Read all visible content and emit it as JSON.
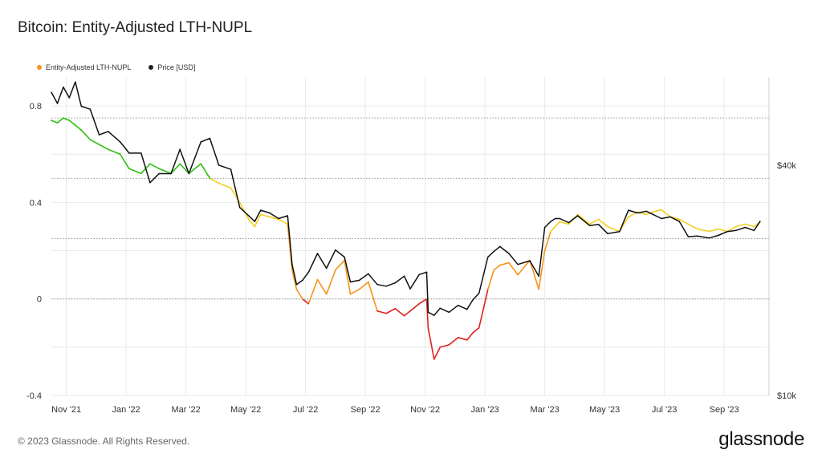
{
  "title": "Bitcoin: Entity-Adjusted LTH-NUPL",
  "footer": "© 2023 Glassnode. All Rights Reserved.",
  "brand": "glassnode",
  "legend": [
    {
      "label": "Entity-Adjusted LTH-NUPL",
      "color": "#f7931a"
    },
    {
      "label": "Price [USD]",
      "color": "#222222"
    }
  ],
  "colors": {
    "price": "#111111",
    "zone_green": "#2ec00f",
    "zone_yellow": "#f2d022",
    "zone_orange": "#f7931a",
    "zone_red": "#e02020",
    "grid": "#e9e9e9",
    "threshold": "#9a9a9a"
  },
  "chart_data": {
    "type": "line",
    "title": "Bitcoin: Entity-Adjusted LTH-NUPL",
    "x_ticks": [
      "Nov '21",
      "Jan '22",
      "Mar '22",
      "May '22",
      "Jul '22",
      "Sep '22",
      "Nov '22",
      "Jan '23",
      "Mar '23",
      "May '23",
      "Jul '23",
      "Sep '23"
    ],
    "x_tick_positions": [
      0.5,
      2.5,
      4.5,
      6.5,
      8.5,
      10.5,
      12.5,
      14.5,
      16.5,
      18.5,
      20.5,
      22.5
    ],
    "x_range": [
      0,
      24
    ],
    "y_left": {
      "ticks": [
        0.8,
        0.4,
        0,
        -0.4
      ],
      "tick_labels": [
        "0.8",
        "0.4",
        "0",
        "-0.4"
      ],
      "range": [
        -0.4,
        0.92
      ]
    },
    "y_right": {
      "ticks": [
        40000,
        10000
      ],
      "tick_labels": [
        "$40k",
        "$10k"
      ],
      "range": [
        10000,
        68000
      ],
      "scale": "log"
    },
    "threshold_lines": [
      0.75,
      0.5,
      0.25,
      0
    ],
    "zone_thresholds": {
      "green_above": 0.5,
      "yellow_above": 0.25,
      "orange_above": 0
    },
    "series": [
      {
        "name": "Entity-Adjusted LTH-NUPL",
        "axis": "left",
        "coloring": "zone",
        "x": [
          0,
          0.2,
          0.4,
          0.6,
          0.8,
          1,
          1.3,
          1.6,
          1.9,
          2.3,
          2.6,
          3,
          3.3,
          3.6,
          4,
          4.3,
          4.6,
          5,
          5.3,
          5.6,
          6,
          6.3,
          6.6,
          6.8,
          7,
          7.3,
          7.6,
          7.9,
          8.05,
          8.2,
          8.4,
          8.6,
          8.9,
          9.2,
          9.5,
          9.8,
          10,
          10.3,
          10.6,
          10.9,
          11.2,
          11.5,
          11.8,
          12,
          12.3,
          12.55,
          12.6,
          12.8,
          13,
          13.3,
          13.6,
          13.9,
          14.1,
          14.3,
          14.6,
          14.8,
          15,
          15.3,
          15.6,
          16,
          16.3,
          16.5,
          16.7,
          16.85,
          17,
          17.3,
          17.6,
          18,
          18.3,
          18.6,
          19,
          19.3,
          19.6,
          19.9,
          20.1,
          20.4,
          20.7,
          21,
          21.3,
          21.6,
          22,
          22.3,
          22.6,
          22.9,
          23.2,
          23.5,
          23.7
        ],
        "values": [
          0.74,
          0.73,
          0.75,
          0.74,
          0.72,
          0.7,
          0.66,
          0.64,
          0.62,
          0.6,
          0.54,
          0.52,
          0.56,
          0.54,
          0.52,
          0.56,
          0.52,
          0.56,
          0.5,
          0.48,
          0.46,
          0.4,
          0.33,
          0.3,
          0.35,
          0.34,
          0.33,
          0.31,
          0.12,
          0.04,
          0.0,
          -0.02,
          0.08,
          0.02,
          0.12,
          0.16,
          0.02,
          0.04,
          0.07,
          -0.05,
          -0.06,
          -0.04,
          -0.07,
          -0.05,
          -0.02,
          0.0,
          -0.12,
          -0.25,
          -0.2,
          -0.19,
          -0.16,
          -0.17,
          -0.14,
          -0.12,
          0.04,
          0.12,
          0.14,
          0.15,
          0.1,
          0.16,
          0.04,
          0.2,
          0.28,
          0.3,
          0.32,
          0.31,
          0.35,
          0.31,
          0.33,
          0.3,
          0.28,
          0.34,
          0.36,
          0.35,
          0.36,
          0.37,
          0.34,
          0.33,
          0.31,
          0.29,
          0.28,
          0.29,
          0.28,
          0.3,
          0.31,
          0.3,
          0.32
        ]
      },
      {
        "name": "Price [USD]",
        "axis": "right",
        "x": [
          0,
          0.2,
          0.4,
          0.6,
          0.8,
          1,
          1.3,
          1.6,
          1.9,
          2.3,
          2.6,
          3,
          3.3,
          3.6,
          4,
          4.3,
          4.6,
          5,
          5.3,
          5.6,
          6,
          6.3,
          6.6,
          6.8,
          7,
          7.3,
          7.6,
          7.9,
          8.05,
          8.2,
          8.4,
          8.6,
          8.9,
          9.2,
          9.5,
          9.8,
          10,
          10.3,
          10.6,
          10.9,
          11.2,
          11.5,
          11.8,
          12,
          12.3,
          12.55,
          12.6,
          12.8,
          13,
          13.3,
          13.6,
          13.9,
          14.1,
          14.3,
          14.6,
          14.8,
          15,
          15.3,
          15.6,
          16,
          16.3,
          16.5,
          16.7,
          16.85,
          17,
          17.3,
          17.6,
          18,
          18.3,
          18.6,
          19,
          19.3,
          19.6,
          19.9,
          20.1,
          20.4,
          20.7,
          21,
          21.3,
          21.6,
          22,
          22.3,
          22.6,
          22.9,
          23.2,
          23.5,
          23.7
        ],
        "values": [
          62000,
          58000,
          64000,
          60000,
          66000,
          57000,
          56000,
          48000,
          49000,
          46000,
          43000,
          43000,
          36000,
          38000,
          38000,
          44000,
          38000,
          46000,
          47000,
          40000,
          39000,
          31000,
          29500,
          28500,
          30500,
          30000,
          29000,
          29500,
          22000,
          19500,
          20000,
          21000,
          23500,
          21500,
          24000,
          23000,
          19800,
          20000,
          20800,
          19500,
          19300,
          19700,
          20500,
          19000,
          20700,
          21000,
          16500,
          16200,
          16900,
          16500,
          17200,
          16800,
          17800,
          18500,
          23000,
          23800,
          24500,
          23500,
          22000,
          22500,
          20500,
          27500,
          28500,
          29000,
          29000,
          28300,
          29500,
          27800,
          28000,
          26500,
          26800,
          30500,
          30000,
          30300,
          29800,
          29000,
          29300,
          28500,
          26000,
          26100,
          25800,
          26200,
          26800,
          27000,
          27500,
          27000,
          28500
        ]
      }
    ]
  }
}
